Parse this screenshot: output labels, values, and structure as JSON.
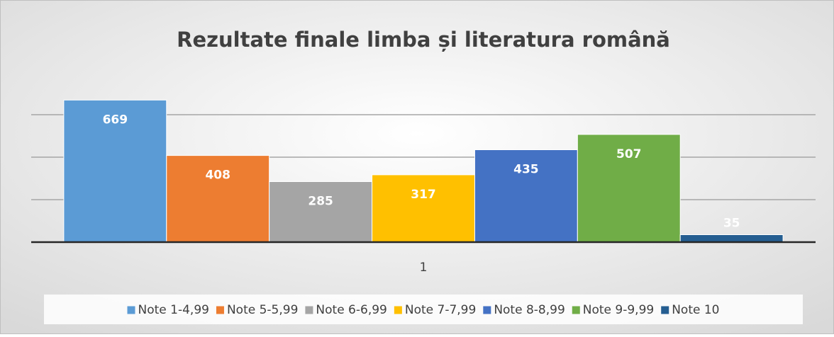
{
  "chart_data": {
    "type": "bar",
    "title": "Rezultate finale limba și literatura română",
    "categories": [
      "1"
    ],
    "series": [
      {
        "name": "Note 1-4,99",
        "color": "#5b9bd5",
        "values": [
          669
        ]
      },
      {
        "name": "Note 5-5,99",
        "color": "#ed7d31",
        "values": [
          408
        ]
      },
      {
        "name": "Note 6-6,99",
        "color": "#a5a5a5",
        "values": [
          285
        ]
      },
      {
        "name": "Note 7-7,99",
        "color": "#ffc000",
        "values": [
          317
        ]
      },
      {
        "name": "Note 8-8,99",
        "color": "#4472c4",
        "values": [
          435
        ]
      },
      {
        "name": "Note 9-9,99",
        "color": "#70ad47",
        "values": [
          507
        ]
      },
      {
        "name": "Note 10",
        "color": "#255e91",
        "values": [
          35
        ]
      }
    ],
    "ylim": [
      0,
      800
    ],
    "yticks": [
      0,
      200,
      400,
      600
    ],
    "grid": true,
    "legend": "bottom"
  }
}
